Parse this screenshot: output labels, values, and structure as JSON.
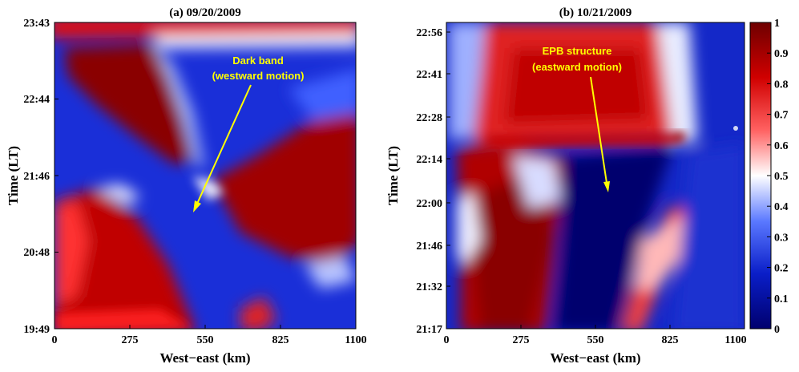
{
  "chart_data": [
    {
      "type": "heatmap",
      "title": "(a) 09/20/2009",
      "xlabel": "West−east (km)",
      "ylabel": "Time (LT)",
      "xlim": [
        0,
        1100
      ],
      "x_ticks": [
        "0",
        "275",
        "550",
        "825",
        "1100"
      ],
      "y_ticks": [
        "19:49",
        "20:48",
        "21:46",
        "22:44",
        "23:43"
      ],
      "annotation": {
        "lines": [
          "Dark band",
          "(westward motion)"
        ]
      },
      "features": [
        {
          "name": "dark-band",
          "value": 0.05,
          "path_km_time": [
            [
              "600",
              "19:49"
            ],
            [
              "500",
              "21:46"
            ],
            [
              "100",
              "23:30"
            ]
          ]
        },
        {
          "name": "red-region-west-early",
          "value": 0.95
        },
        {
          "name": "red-region-east-late",
          "value": 0.95
        }
      ]
    },
    {
      "type": "heatmap",
      "title": "(b) 10/21/2009",
      "xlabel": "West−east (km)",
      "ylabel": "Time (LT)",
      "xlim": [
        0,
        1100
      ],
      "x_ticks": [
        "0",
        "275",
        "550",
        "825",
        "1100"
      ],
      "y_ticks": [
        "21:17",
        "21:32",
        "21:46",
        "22:00",
        "22:14",
        "22:28",
        "22:41",
        "22:56"
      ],
      "annotation": {
        "lines": [
          "EPB structure",
          "(eastward motion)"
        ]
      },
      "features": [
        {
          "name": "epb-dark-band",
          "value": 0.03,
          "path_km_time": [
            [
              "450",
              "21:17"
            ],
            [
              "550",
              "22:00"
            ],
            [
              "650",
              "22:18"
            ]
          ]
        },
        {
          "name": "red-cap-late",
          "value": 0.95
        }
      ]
    }
  ],
  "colorbar": {
    "min": 0,
    "max": 1,
    "ticks": [
      "0",
      "0.1",
      "0.2",
      "0.3",
      "0.4",
      "0.5",
      "0.6",
      "0.7",
      "0.8",
      "0.9",
      "1"
    ],
    "colors": [
      "#00006e",
      "#1030c8",
      "#6e8cff",
      "#ffffff",
      "#ff5050",
      "#c80000",
      "#6e0000"
    ]
  }
}
